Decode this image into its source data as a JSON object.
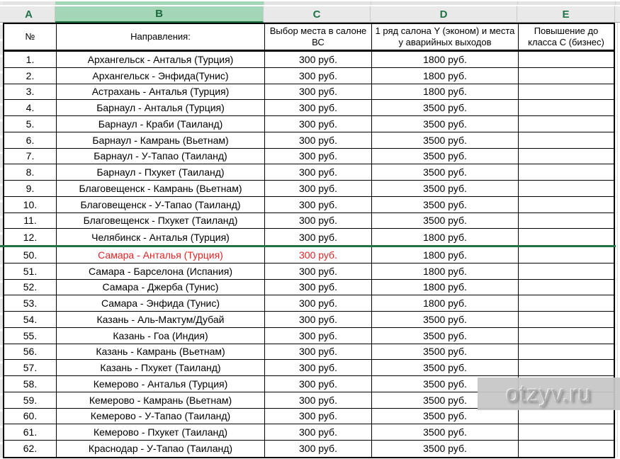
{
  "sheet": {
    "column_letters": {
      "a": "A",
      "b": "B",
      "c": "C",
      "d": "D",
      "e": "E"
    },
    "selected_column": "B"
  },
  "table": {
    "header": {
      "num": "№",
      "route": "Направления:",
      "seat": "Выбор места в салоне ВС",
      "row1": "1 ряд салона Y (эконом) и места у аварийных выходов",
      "upgrade": "Повышение до класса С (бизнес)"
    },
    "rows_top": [
      {
        "num": "1.",
        "route": "Архангельск - Анталья (Турция)",
        "seat": "300 руб.",
        "row1": "1800 руб.",
        "upgrade": "",
        "red": false
      },
      {
        "num": "2.",
        "route": "Архангельск - Энфида(Тунис)",
        "seat": "300 руб.",
        "row1": "1800 руб.",
        "upgrade": "",
        "red": false
      },
      {
        "num": "3.",
        "route": "Астрахань - Анталья (Турция)",
        "seat": "300 руб.",
        "row1": "1800 руб.",
        "upgrade": "",
        "red": false
      },
      {
        "num": "4.",
        "route": "Барнаул - Анталья (Турция)",
        "seat": "300 руб.",
        "row1": "3500 руб.",
        "upgrade": "",
        "red": false
      },
      {
        "num": "5.",
        "route": "Барнаул - Краби (Таиланд)",
        "seat": "300 руб.",
        "row1": "3500 руб.",
        "upgrade": "",
        "red": false
      },
      {
        "num": "6.",
        "route": "Барнаул - Камрань (Вьетнам)",
        "seat": "300 руб.",
        "row1": "3500 руб.",
        "upgrade": "",
        "red": false
      },
      {
        "num": "7.",
        "route": "Барнаул - У-Тапао (Таиланд)",
        "seat": "300 руб.",
        "row1": "3500 руб.",
        "upgrade": "",
        "red": false
      },
      {
        "num": "8.",
        "route": "Барнаул - Пхукет (Таиланд)",
        "seat": "300 руб.",
        "row1": "3500 руб.",
        "upgrade": "",
        "red": false
      },
      {
        "num": "9.",
        "route": "Благовещенск - Камрань (Вьетнам)",
        "seat": "300 руб.",
        "row1": "3500 руб.",
        "upgrade": "",
        "red": false
      },
      {
        "num": "10.",
        "route": "Благовещенск - У-Тапао (Таиланд)",
        "seat": "300 руб.",
        "row1": "3500 руб.",
        "upgrade": "",
        "red": false
      },
      {
        "num": "11.",
        "route": "Благовещенск - Пхукет (Таиланд)",
        "seat": "300 руб.",
        "row1": "3500 руб.",
        "upgrade": "",
        "red": false
      },
      {
        "num": "12.",
        "route": "Челябинск - Анталья (Турция)",
        "seat": "300 руб.",
        "row1": "1800 руб.",
        "upgrade": "",
        "red": false
      }
    ],
    "rows_bottom": [
      {
        "num": "50.",
        "route": "Самара - Анталья (Турция)",
        "seat": "300 руб.",
        "row1": "1800 руб.",
        "upgrade": "",
        "red": true
      },
      {
        "num": "51.",
        "route": "Самара - Барселона (Испания)",
        "seat": "300 руб.",
        "row1": "1800 руб.",
        "upgrade": "",
        "red": false
      },
      {
        "num": "52.",
        "route": "Самара - Джерба (Тунис)",
        "seat": "300 руб.",
        "row1": "1800 руб.",
        "upgrade": "",
        "red": false
      },
      {
        "num": "53.",
        "route": "Самара - Энфида (Тунис)",
        "seat": "300 руб.",
        "row1": "1800 руб.",
        "upgrade": "",
        "red": false
      },
      {
        "num": "54.",
        "route": "Казань - Аль-Мактум/Дубай",
        "seat": "300 руб.",
        "row1": "3500 руб.",
        "upgrade": "",
        "red": false
      },
      {
        "num": "55.",
        "route": "Казань - Гоа (Индия)",
        "seat": "300 руб.",
        "row1": "3500 руб.",
        "upgrade": "",
        "red": false
      },
      {
        "num": "56.",
        "route": "Казань - Камрань (Вьетнам)",
        "seat": "300 руб.",
        "row1": "3500 руб.",
        "upgrade": "",
        "red": false
      },
      {
        "num": "57.",
        "route": "Казань - Пхукет (Таиланд)",
        "seat": "300 руб.",
        "row1": "3500 руб.",
        "upgrade": "",
        "red": false
      },
      {
        "num": "58.",
        "route": "Кемерово - Анталья (Турция)",
        "seat": "300 руб.",
        "row1": "3500 руб.",
        "upgrade": "",
        "red": false
      },
      {
        "num": "59.",
        "route": "Кемерово - Камрань (Вьетнам)",
        "seat": "300 руб.",
        "row1": "3500 руб.",
        "upgrade": "",
        "red": false
      },
      {
        "num": "60.",
        "route": "Кемерово - У-Тапао (Таиланд)",
        "seat": "300 руб.",
        "row1": "3500 руб.",
        "upgrade": "",
        "red": false
      },
      {
        "num": "61.",
        "route": "Кемерово - Пхукет (Таиланд)",
        "seat": "300 руб.",
        "row1": "3500 руб.",
        "upgrade": "",
        "red": false
      },
      {
        "num": "62.",
        "route": "Краснодар - У-Тапао (Таиланд)",
        "seat": "300 руб.",
        "row1": "3500 руб.",
        "upgrade": "",
        "red": false
      }
    ]
  },
  "watermark": {
    "text": "otzyv.ru"
  },
  "colors": {
    "excel_green": "#217346",
    "selected_header_fill": "#a3d5b7",
    "red_text": "#e02424"
  }
}
